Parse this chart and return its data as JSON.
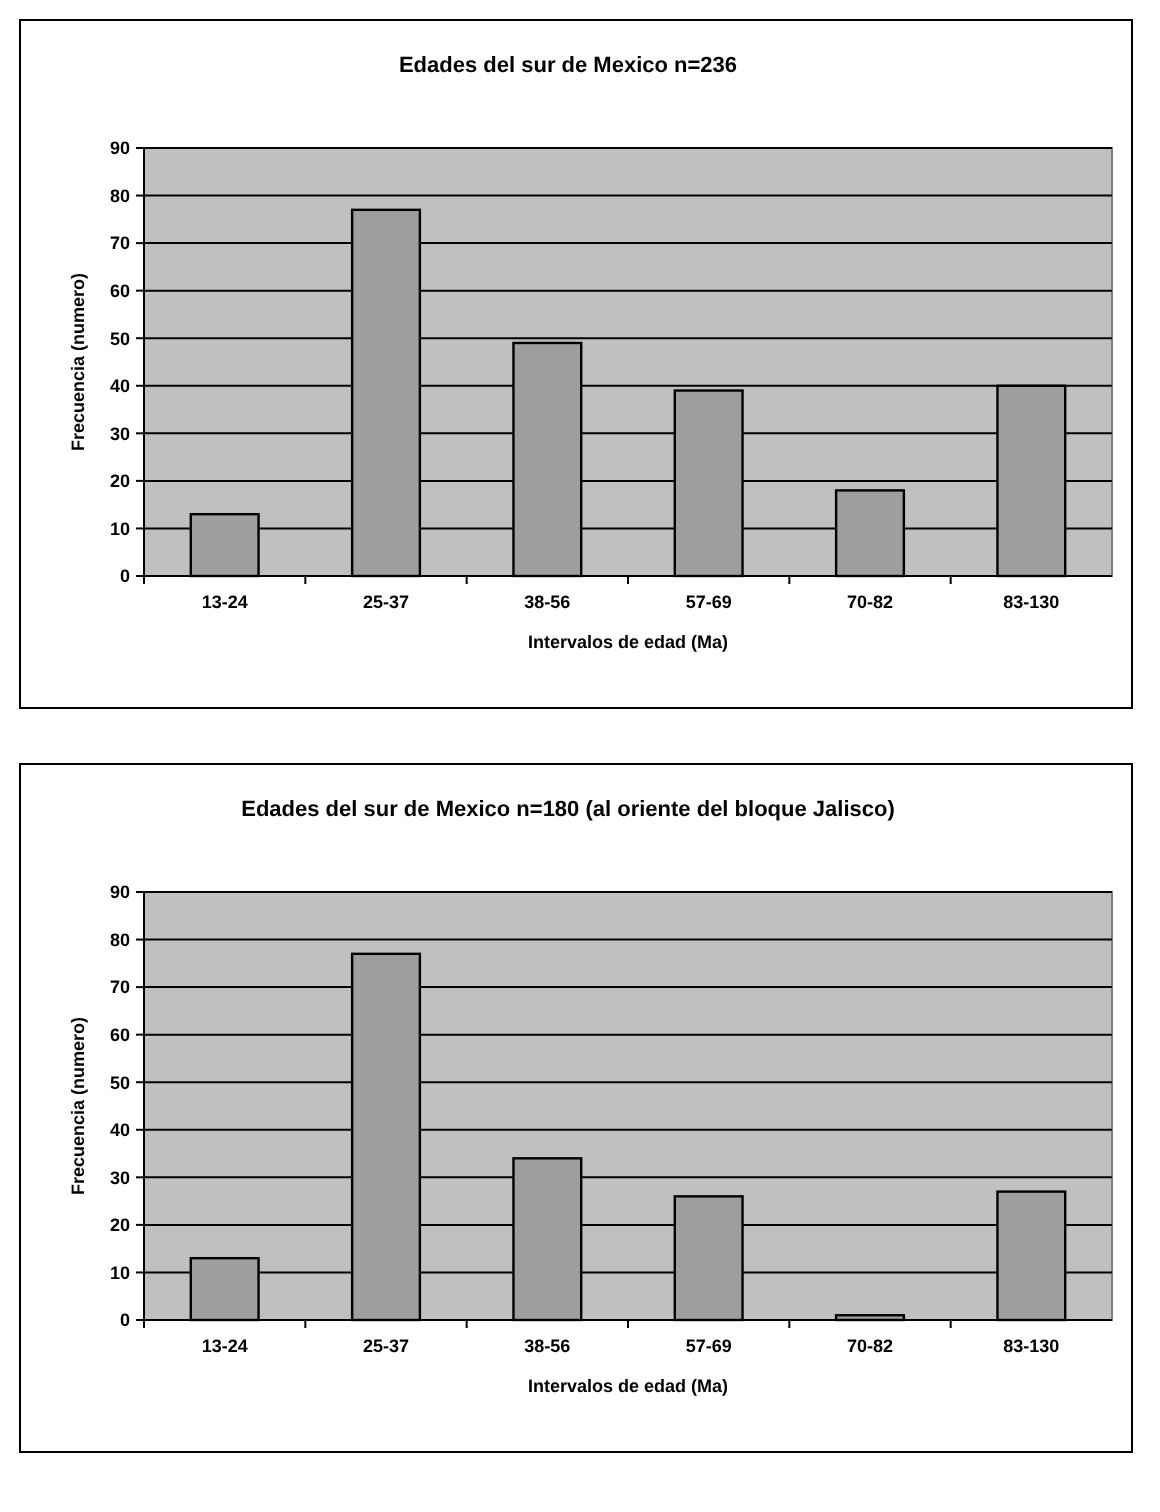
{
  "chart_data": [
    {
      "type": "bar",
      "title": "Edades del sur de Mexico n=236",
      "xlabel": "Intervalos de edad (Ma)",
      "ylabel": "Frecuencia (numero)",
      "categories": [
        "13-24",
        "25-37",
        "38-56",
        "57-69",
        "70-82",
        "83-130"
      ],
      "values": [
        13,
        77,
        49,
        39,
        18,
        40
      ],
      "color": "#9e9e9e",
      "ylim": [
        0,
        90
      ],
      "yticks": [
        0,
        10,
        20,
        30,
        40,
        50,
        60,
        70,
        80,
        90
      ],
      "grid": "y"
    },
    {
      "type": "bar",
      "title": "Edades del sur de Mexico n=180 (al oriente del bloque Jalisco)",
      "xlabel": "Intervalos de edad (Ma)",
      "ylabel": "Frecuencia (numero)",
      "categories": [
        "13-24",
        "25-37",
        "38-56",
        "57-69",
        "70-82",
        "83-130"
      ],
      "values": [
        13,
        77,
        34,
        26,
        1,
        27
      ],
      "color": "#9e9e9e",
      "ylim": [
        0,
        90
      ],
      "yticks": [
        0,
        10,
        20,
        30,
        40,
        50,
        60,
        70,
        80,
        90
      ],
      "grid": "y"
    }
  ]
}
